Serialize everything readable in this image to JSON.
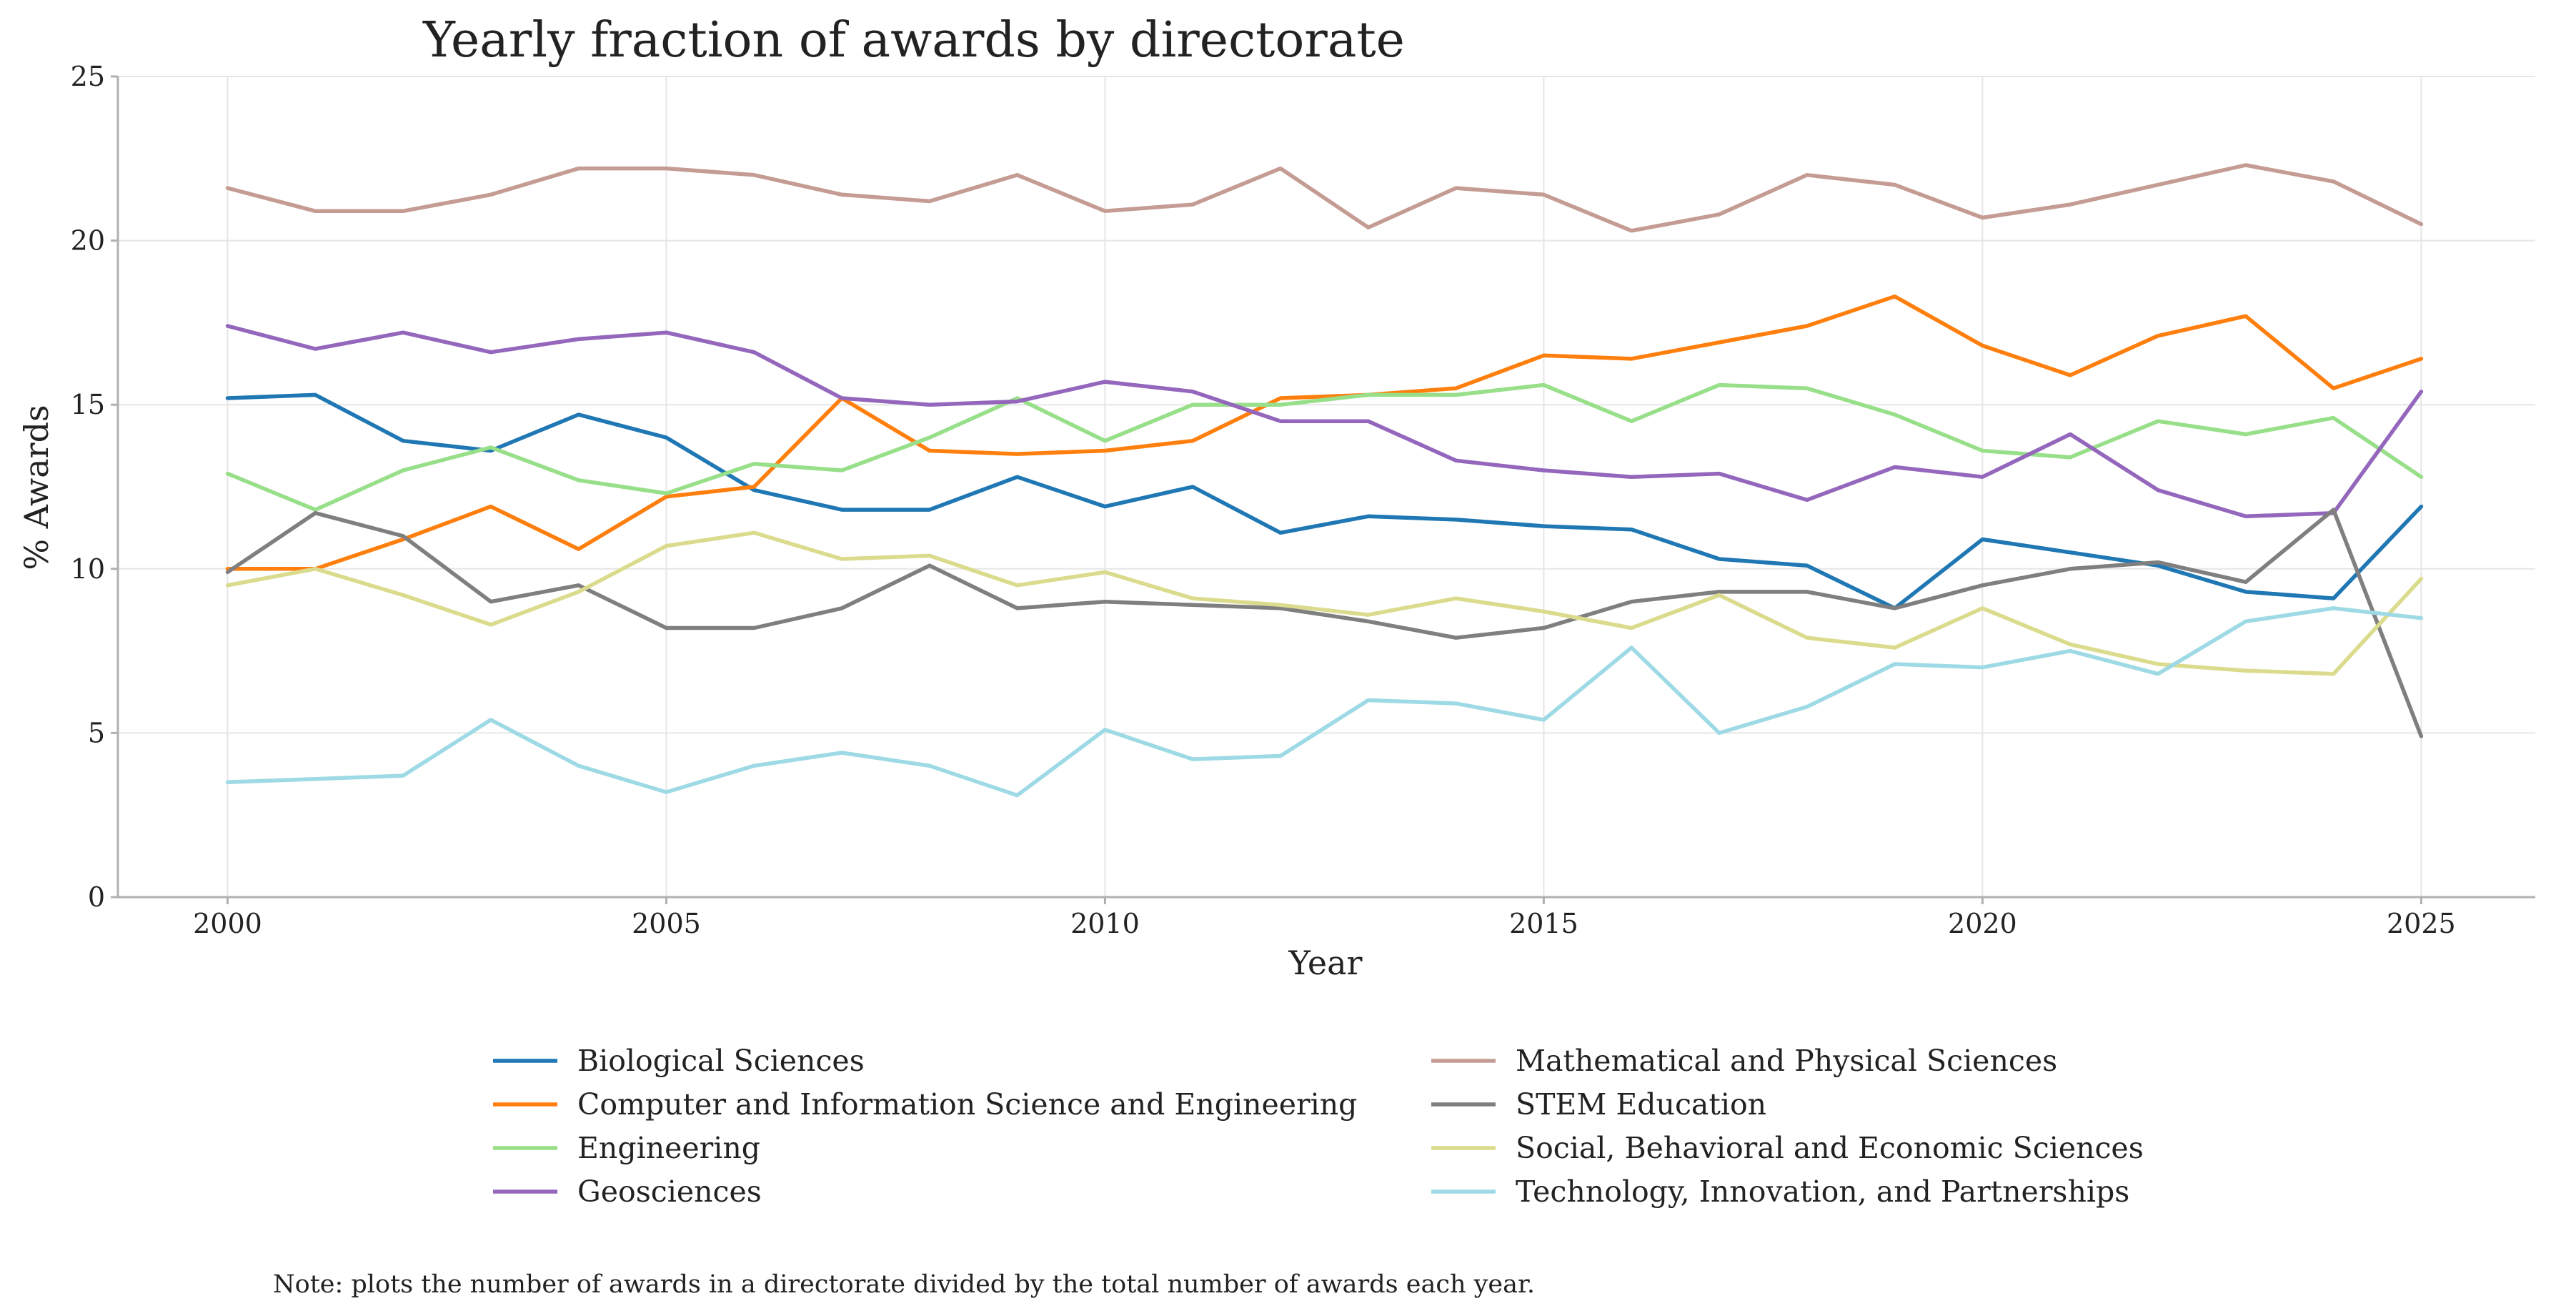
{
  "chart_data": {
    "type": "line",
    "title": "Yearly fraction of awards by directorate",
    "xlabel": "Year",
    "ylabel": "% Awards",
    "xlim": [
      1998.75,
      2026.3
    ],
    "ylim": [
      0,
      25
    ],
    "xticks": [
      2000,
      2005,
      2010,
      2015,
      2020,
      2025
    ],
    "yticks": [
      0,
      5,
      10,
      15,
      20,
      25
    ],
    "grid": true,
    "legend_position": "bottom",
    "x": [
      2000,
      2001,
      2002,
      2003,
      2004,
      2005,
      2006,
      2007,
      2008,
      2009,
      2010,
      2011,
      2012,
      2013,
      2014,
      2015,
      2016,
      2017,
      2018,
      2019,
      2020,
      2021,
      2022,
      2023,
      2024,
      2025
    ],
    "series": [
      {
        "name": "Biological Sciences",
        "color": "#1f77b4",
        "values": [
          15.2,
          15.3,
          13.9,
          13.6,
          14.7,
          14.0,
          12.4,
          11.8,
          11.8,
          12.8,
          11.9,
          12.5,
          11.1,
          11.6,
          11.5,
          11.3,
          11.2,
          10.3,
          10.1,
          8.8,
          10.9,
          10.5,
          10.1,
          9.3,
          9.1,
          11.9
        ]
      },
      {
        "name": "Computer and Information Science and Engineering",
        "color": "#ff7f0e",
        "values": [
          10.0,
          10.0,
          10.9,
          11.9,
          10.6,
          12.2,
          12.5,
          15.2,
          13.6,
          13.5,
          13.6,
          13.9,
          15.2,
          15.3,
          15.5,
          16.5,
          16.4,
          16.9,
          17.4,
          18.3,
          16.8,
          15.9,
          17.1,
          17.7,
          15.5,
          16.4
        ]
      },
      {
        "name": "Engineering",
        "color": "#98df8a",
        "values": [
          12.9,
          11.8,
          13.0,
          13.7,
          12.7,
          12.3,
          13.2,
          13.0,
          14.0,
          15.2,
          13.9,
          15.0,
          15.0,
          15.3,
          15.3,
          15.6,
          14.5,
          15.6,
          15.5,
          14.7,
          13.6,
          13.4,
          14.5,
          14.1,
          14.6,
          12.8
        ]
      },
      {
        "name": "Geosciences",
        "color": "#9467bd",
        "values": [
          17.4,
          16.7,
          17.2,
          16.6,
          17.0,
          17.2,
          16.6,
          15.2,
          15.0,
          15.1,
          15.7,
          15.4,
          14.5,
          14.5,
          13.3,
          13.0,
          12.8,
          12.9,
          12.1,
          13.1,
          12.8,
          14.1,
          12.4,
          11.6,
          11.7,
          15.4
        ]
      },
      {
        "name": "Mathematical and Physical Sciences",
        "color": "#c49c94",
        "values": [
          21.6,
          20.9,
          20.9,
          21.4,
          22.2,
          22.2,
          22.0,
          21.4,
          21.2,
          22.0,
          20.9,
          21.1,
          22.2,
          20.4,
          21.6,
          21.4,
          20.3,
          20.8,
          22.0,
          21.7,
          20.7,
          21.1,
          21.7,
          22.3,
          21.8,
          20.5
        ]
      },
      {
        "name": "STEM Education",
        "color": "#7f7f7f",
        "values": [
          9.9,
          11.7,
          11.0,
          9.0,
          9.5,
          8.2,
          8.2,
          8.8,
          10.1,
          8.8,
          9.0,
          8.9,
          8.8,
          8.4,
          7.9,
          8.2,
          9.0,
          9.3,
          9.3,
          8.8,
          9.5,
          10.0,
          10.2,
          9.6,
          11.8,
          4.9
        ]
      },
      {
        "name": "Social, Behavioral and Economic Sciences",
        "color": "#dbdb8d",
        "values": [
          9.5,
          10.0,
          9.2,
          8.3,
          9.3,
          10.7,
          11.1,
          10.3,
          10.4,
          9.5,
          9.9,
          9.1,
          8.9,
          8.6,
          9.1,
          8.7,
          8.2,
          9.2,
          7.9,
          7.6,
          8.8,
          7.7,
          7.1,
          6.9,
          6.8,
          9.7
        ]
      },
      {
        "name": "Technology, Innovation, and Partnerships",
        "color": "#9edae5",
        "values": [
          3.5,
          3.6,
          3.7,
          5.4,
          4.0,
          3.2,
          4.0,
          4.4,
          4.0,
          3.1,
          5.1,
          4.2,
          4.3,
          6.0,
          5.9,
          5.4,
          7.6,
          5.0,
          5.8,
          7.1,
          7.0,
          7.5,
          6.8,
          8.4,
          8.8,
          8.5
        ]
      }
    ]
  },
  "note": "Note: plots the number of awards in a directorate divided by the total number of awards each year."
}
